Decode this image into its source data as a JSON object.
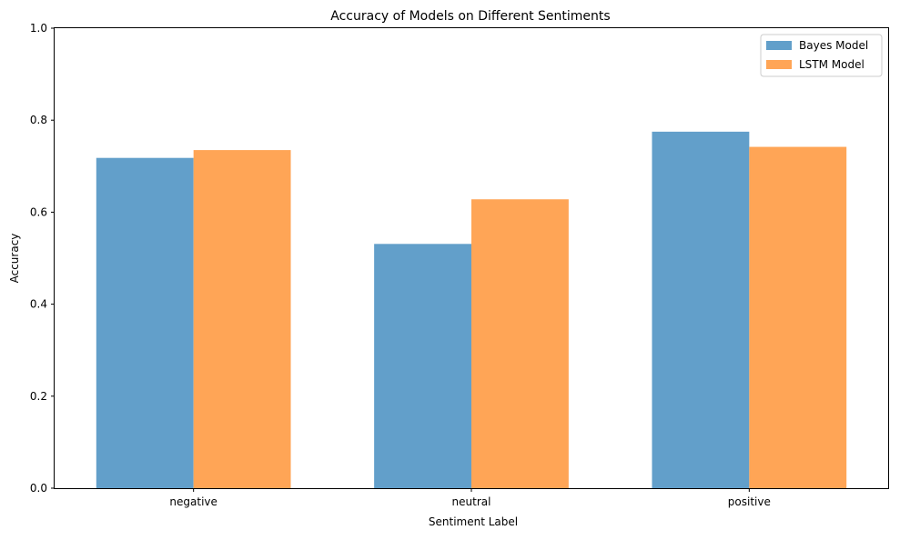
{
  "chart_data": {
    "type": "bar",
    "title": "Accuracy of Models on Different Sentiments",
    "xlabel": "Sentiment Label",
    "ylabel": "Accuracy",
    "categories": [
      "negative",
      "neutral",
      "positive"
    ],
    "series": [
      {
        "name": "Bayes Model",
        "values": [
          0.718,
          0.531,
          0.775
        ],
        "color": "#629fca"
      },
      {
        "name": "LSTM Model",
        "values": [
          0.735,
          0.628,
          0.742
        ],
        "color": "#ffa556"
      }
    ],
    "ylim": [
      0,
      1.0
    ],
    "yticks": [
      "0.0",
      "0.2",
      "0.4",
      "0.6",
      "0.8",
      "1.0"
    ],
    "grid": false,
    "legend_position": "top-right"
  }
}
